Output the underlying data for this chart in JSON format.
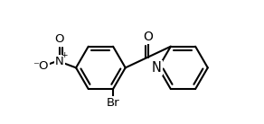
{
  "background_color": "#ffffff",
  "line_color": "#000000",
  "line_width": 1.5,
  "text_color": "#000000",
  "fig_width": 2.92,
  "fig_height": 1.38,
  "dpi": 100,
  "font_size_atom": 9.5,
  "font_size_O": 10,
  "xlim": [
    -1.1,
    1.3
  ],
  "ylim": [
    -0.75,
    0.75
  ]
}
